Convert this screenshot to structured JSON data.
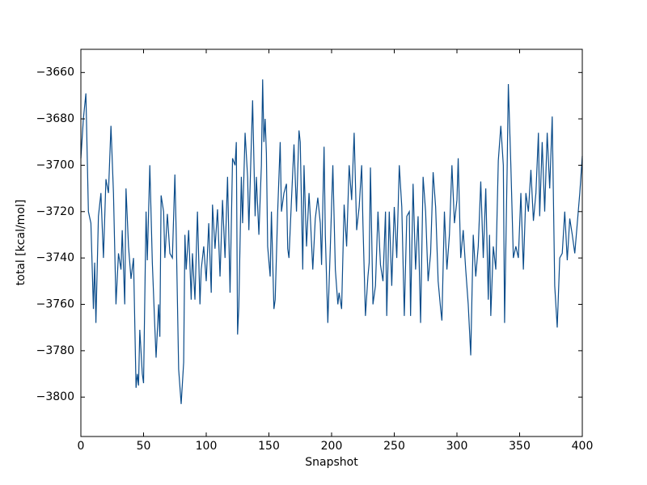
{
  "chart_data": {
    "type": "line",
    "x_label": "Snapshot",
    "y_label": "total [kcal/mol]",
    "xlim": [
      0,
      400
    ],
    "ylim": [
      -3817,
      -3650
    ],
    "xticks": [
      0,
      50,
      100,
      150,
      200,
      250,
      300,
      350,
      400
    ],
    "yticks": [
      {
        "value": -3800,
        "label": "−3800"
      },
      {
        "value": -3780,
        "label": "−3780"
      },
      {
        "value": -3760,
        "label": "−3760"
      },
      {
        "value": -3740,
        "label": "−3740"
      },
      {
        "value": -3720,
        "label": "−3720"
      },
      {
        "value": -3700,
        "label": "−3700"
      },
      {
        "value": -3680,
        "label": "−3680"
      },
      {
        "value": -3660,
        "label": "−3660"
      }
    ],
    "grid": false,
    "series": [
      {
        "color": "#0b4c8a",
        "x": [
          0,
          2,
          4,
          6,
          8,
          10,
          11,
          12,
          14,
          16,
          18,
          20,
          22,
          24,
          26,
          28,
          30,
          32,
          33,
          35,
          36,
          38,
          40,
          42,
          44,
          45,
          46,
          47,
          49,
          50,
          52,
          53,
          55,
          57,
          59,
          60,
          62,
          63,
          64,
          66,
          67,
          69,
          71,
          73,
          75,
          76,
          78,
          80,
          82,
          83,
          84,
          86,
          88,
          89,
          91,
          93,
          95,
          96,
          98,
          100,
          102,
          104,
          105,
          107,
          109,
          111,
          113,
          115,
          117,
          119,
          121,
          123,
          124,
          125,
          126,
          128,
          129,
          131,
          133,
          134,
          136,
          137,
          139,
          140,
          142,
          144,
          145,
          146,
          147,
          148,
          149,
          151,
          152,
          154,
          155,
          157,
          159,
          160,
          162,
          164,
          165,
          166,
          168,
          170,
          172,
          174,
          175,
          177,
          178,
          180,
          182,
          183,
          185,
          187,
          189,
          191,
          192,
          194,
          195,
          197,
          199,
          201,
          203,
          205,
          206,
          208,
          210,
          212,
          214,
          216,
          218,
          220,
          222,
          224,
          225,
          227,
          229,
          230,
          231,
          233,
          235,
          237,
          239,
          241,
          243,
          244,
          246,
          248,
          250,
          252,
          254,
          256,
          258,
          260,
          262,
          263,
          265,
          267,
          269,
          271,
          273,
          275,
          277,
          279,
          281,
          283,
          285,
          287,
          288,
          290,
          292,
          294,
          296,
          298,
          300,
          301,
          303,
          305,
          307,
          309,
          311,
          313,
          315,
          317,
          319,
          321,
          323,
          325,
          326,
          327,
          329,
          331,
          333,
          335,
          337,
          338,
          340,
          341,
          343,
          345,
          347,
          349,
          351,
          353,
          355,
          357,
          359,
          361,
          363,
          365,
          366,
          368,
          370,
          372,
          374,
          376,
          378,
          380,
          382,
          384,
          386,
          388,
          390,
          392,
          394,
          396,
          398,
          400
        ],
        "values": [
          -3697,
          -3680,
          -3669,
          -3720,
          -3725,
          -3762,
          -3742,
          -3768,
          -3722,
          -3712,
          -3740,
          -3706,
          -3712,
          -3683,
          -3712,
          -3760,
          -3738,
          -3745,
          -3728,
          -3760,
          -3710,
          -3735,
          -3749,
          -3740,
          -3796,
          -3790,
          -3795,
          -3771,
          -3790,
          -3794,
          -3720,
          -3741,
          -3700,
          -3742,
          -3770,
          -3783,
          -3760,
          -3774,
          -3713,
          -3720,
          -3740,
          -3721,
          -3738,
          -3740,
          -3704,
          -3728,
          -3788,
          -3803,
          -3785,
          -3730,
          -3745,
          -3728,
          -3758,
          -3738,
          -3758,
          -3720,
          -3760,
          -3745,
          -3735,
          -3750,
          -3725,
          -3755,
          -3717,
          -3736,
          -3719,
          -3748,
          -3715,
          -3740,
          -3705,
          -3755,
          -3697,
          -3700,
          -3690,
          -3773,
          -3761,
          -3705,
          -3725,
          -3686,
          -3705,
          -3728,
          -3690,
          -3672,
          -3722,
          -3705,
          -3730,
          -3700,
          -3663,
          -3690,
          -3680,
          -3695,
          -3735,
          -3748,
          -3720,
          -3762,
          -3758,
          -3720,
          -3690,
          -3720,
          -3712,
          -3708,
          -3736,
          -3740,
          -3715,
          -3691,
          -3720,
          -3685,
          -3690,
          -3745,
          -3700,
          -3735,
          -3712,
          -3722,
          -3745,
          -3723,
          -3714,
          -3725,
          -3743,
          -3692,
          -3730,
          -3768,
          -3735,
          -3700,
          -3745,
          -3760,
          -3755,
          -3762,
          -3717,
          -3735,
          -3700,
          -3715,
          -3686,
          -3728,
          -3718,
          -3700,
          -3725,
          -3765,
          -3748,
          -3742,
          -3701,
          -3760,
          -3752,
          -3720,
          -3743,
          -3750,
          -3720,
          -3765,
          -3720,
          -3752,
          -3718,
          -3740,
          -3700,
          -3718,
          -3765,
          -3722,
          -3720,
          -3765,
          -3708,
          -3745,
          -3722,
          -3768,
          -3705,
          -3720,
          -3750,
          -3738,
          -3703,
          -3718,
          -3750,
          -3762,
          -3767,
          -3720,
          -3745,
          -3730,
          -3700,
          -3725,
          -3715,
          -3697,
          -3740,
          -3728,
          -3745,
          -3760,
          -3782,
          -3730,
          -3748,
          -3735,
          -3707,
          -3740,
          -3710,
          -3758,
          -3730,
          -3765,
          -3735,
          -3745,
          -3698,
          -3683,
          -3700,
          -3768,
          -3703,
          -3665,
          -3700,
          -3740,
          -3735,
          -3740,
          -3712,
          -3745,
          -3712,
          -3720,
          -3702,
          -3724,
          -3712,
          -3686,
          -3722,
          -3690,
          -3720,
          -3686,
          -3710,
          -3679,
          -3752,
          -3770,
          -3740,
          -3738,
          -3720,
          -3741,
          -3723,
          -3730,
          -3738,
          -3725,
          -3712,
          -3696
        ]
      }
    ]
  }
}
